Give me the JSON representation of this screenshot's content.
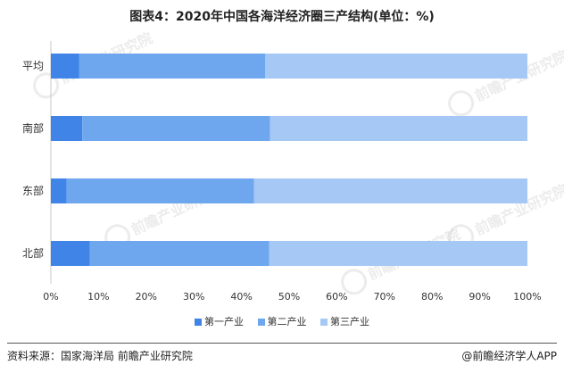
{
  "title": "图表4：2020年中国各海洋经济圈三产结构(单位：%)",
  "colors": {
    "first": "#3f84e6",
    "second": "#6fa7ee",
    "third": "#a6c8f4",
    "axis": "#c9c9c9",
    "watermark": "#c9c9c9"
  },
  "legend": [
    {
      "label": "第一产业",
      "color_key": "first"
    },
    {
      "label": "第二产业",
      "color_key": "second"
    },
    {
      "label": "第三产业",
      "color_key": "third"
    }
  ],
  "footer": {
    "source": "资料来源：国家海洋局 前瞻产业研究院",
    "brand": "@前瞻经济学人APP"
  },
  "watermark_text": "前瞻产业研究院",
  "chart_data": {
    "type": "bar",
    "orientation": "horizontal",
    "stacked": true,
    "title": "图表4：2020年中国各海洋经济圈三产结构(单位：%)",
    "categories": [
      "平均",
      "南部",
      "东部",
      "北部"
    ],
    "series": [
      {
        "name": "第一产业",
        "values": [
          5.9,
          6.6,
          3.3,
          8.2
        ]
      },
      {
        "name": "第二产业",
        "values": [
          39.1,
          39.4,
          39.3,
          37.6
        ]
      },
      {
        "name": "第三产业",
        "values": [
          55.0,
          54.0,
          57.4,
          54.2
        ]
      }
    ],
    "xlim": [
      0,
      100
    ],
    "xticks": [
      "0%",
      "10%",
      "20%",
      "30%",
      "40%",
      "50%",
      "60%",
      "70%",
      "80%",
      "90%",
      "100%"
    ],
    "grid": false,
    "legend_position": "bottom"
  }
}
